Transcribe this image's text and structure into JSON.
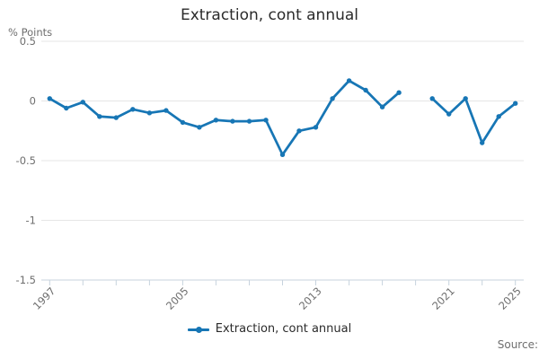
{
  "title": "Extraction, cont annual",
  "y_unit_label": "% Points",
  "legend": {
    "label": "Extraction, cont annual"
  },
  "source_label": "Source:",
  "colors": {
    "series": "#1776b5",
    "grid": "#e6e6e6",
    "axis": "#c7d3de",
    "tick_label": "#6e6e6e",
    "title": "#2b2b2b",
    "legend_text": "#2b2b2b"
  },
  "chart_data": {
    "type": "line",
    "title": "Extraction, cont annual",
    "xlabel": "",
    "ylabel": "% Points",
    "x": [
      1997,
      1998,
      1999,
      2000,
      2001,
      2002,
      2003,
      2004,
      2005,
      2006,
      2007,
      2008,
      2009,
      2010,
      2011,
      2012,
      2013,
      2014,
      2015,
      2016,
      2017,
      2018,
      2019,
      2020,
      2021,
      2022,
      2023,
      2024,
      2025
    ],
    "series": [
      {
        "name": "Extraction, cont annual",
        "values": [
          0.02,
          -0.06,
          -0.01,
          -0.13,
          -0.14,
          -0.07,
          -0.1,
          -0.08,
          -0.18,
          -0.22,
          -0.16,
          -0.17,
          -0.17,
          -0.16,
          -0.45,
          -0.25,
          -0.22,
          0.02,
          0.17,
          0.09,
          -0.05,
          0.07,
          null,
          0.02,
          -0.11,
          0.02,
          -0.35,
          -0.13,
          -0.02
        ]
      }
    ],
    "missing_x": [
      2019
    ],
    "ylim": [
      -1.5,
      0.5
    ],
    "xlim": [
      1996.5,
      2025.5
    ],
    "yticks": [
      0.5,
      0,
      -0.5,
      -1,
      -1.5
    ],
    "ytick_labels": [
      "0.5",
      "0",
      "-0.5",
      "-1",
      "-1.5"
    ],
    "xticks": [
      1997,
      1999,
      2001,
      2003,
      2005,
      2007,
      2009,
      2011,
      2013,
      2015,
      2017,
      2019,
      2021,
      2023,
      2025
    ],
    "xtick_labels_shown": [
      1997,
      2005,
      2013,
      2021,
      2025
    ],
    "grid": true,
    "legend_position": "bottom"
  }
}
